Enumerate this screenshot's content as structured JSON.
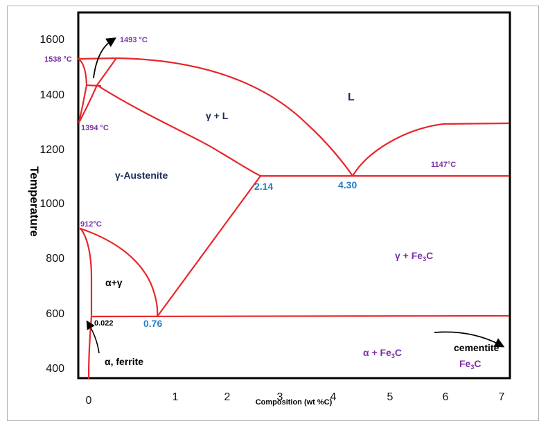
{
  "colors": {
    "phase_line": "#e8262a",
    "purple_label": "#7b2fa8",
    "blue_value": "#1f7fc6",
    "navy_label": "#1b2a5c",
    "black_label": "#000000"
  },
  "axes": {
    "y_title": "Temperature",
    "x_title": "Composition (wt %C)",
    "y_ticks": [
      "1600",
      "1400",
      "1200",
      "1000",
      "800",
      "600",
      "400"
    ],
    "x_ticks": [
      "0",
      "1",
      "2",
      "3",
      "4",
      "5",
      "6",
      "7"
    ]
  },
  "temperatures": {
    "t1493": "1493 °C",
    "t1538": "1538 °C",
    "t1394": "1394 °C",
    "t912": "912°C",
    "t1147": "1147°C"
  },
  "compositions": {
    "c214": "2.14",
    "c430": "4.30",
    "c076": "0.76",
    "c0022": "0.022"
  },
  "regions": {
    "liquid": "L",
    "gamma_liquid": "γ + L",
    "austenite": "γ-Austenite",
    "gamma_cementite": "γ + Fe",
    "alpha_gamma": "α+γ",
    "alpha_cementite": "α + Fe",
    "ferrite": "α, ferrite",
    "cementite": "cementite",
    "cementite_formula": "Fe"
  },
  "subscripts": {
    "three": "3",
    "c_suffix": "C"
  }
}
